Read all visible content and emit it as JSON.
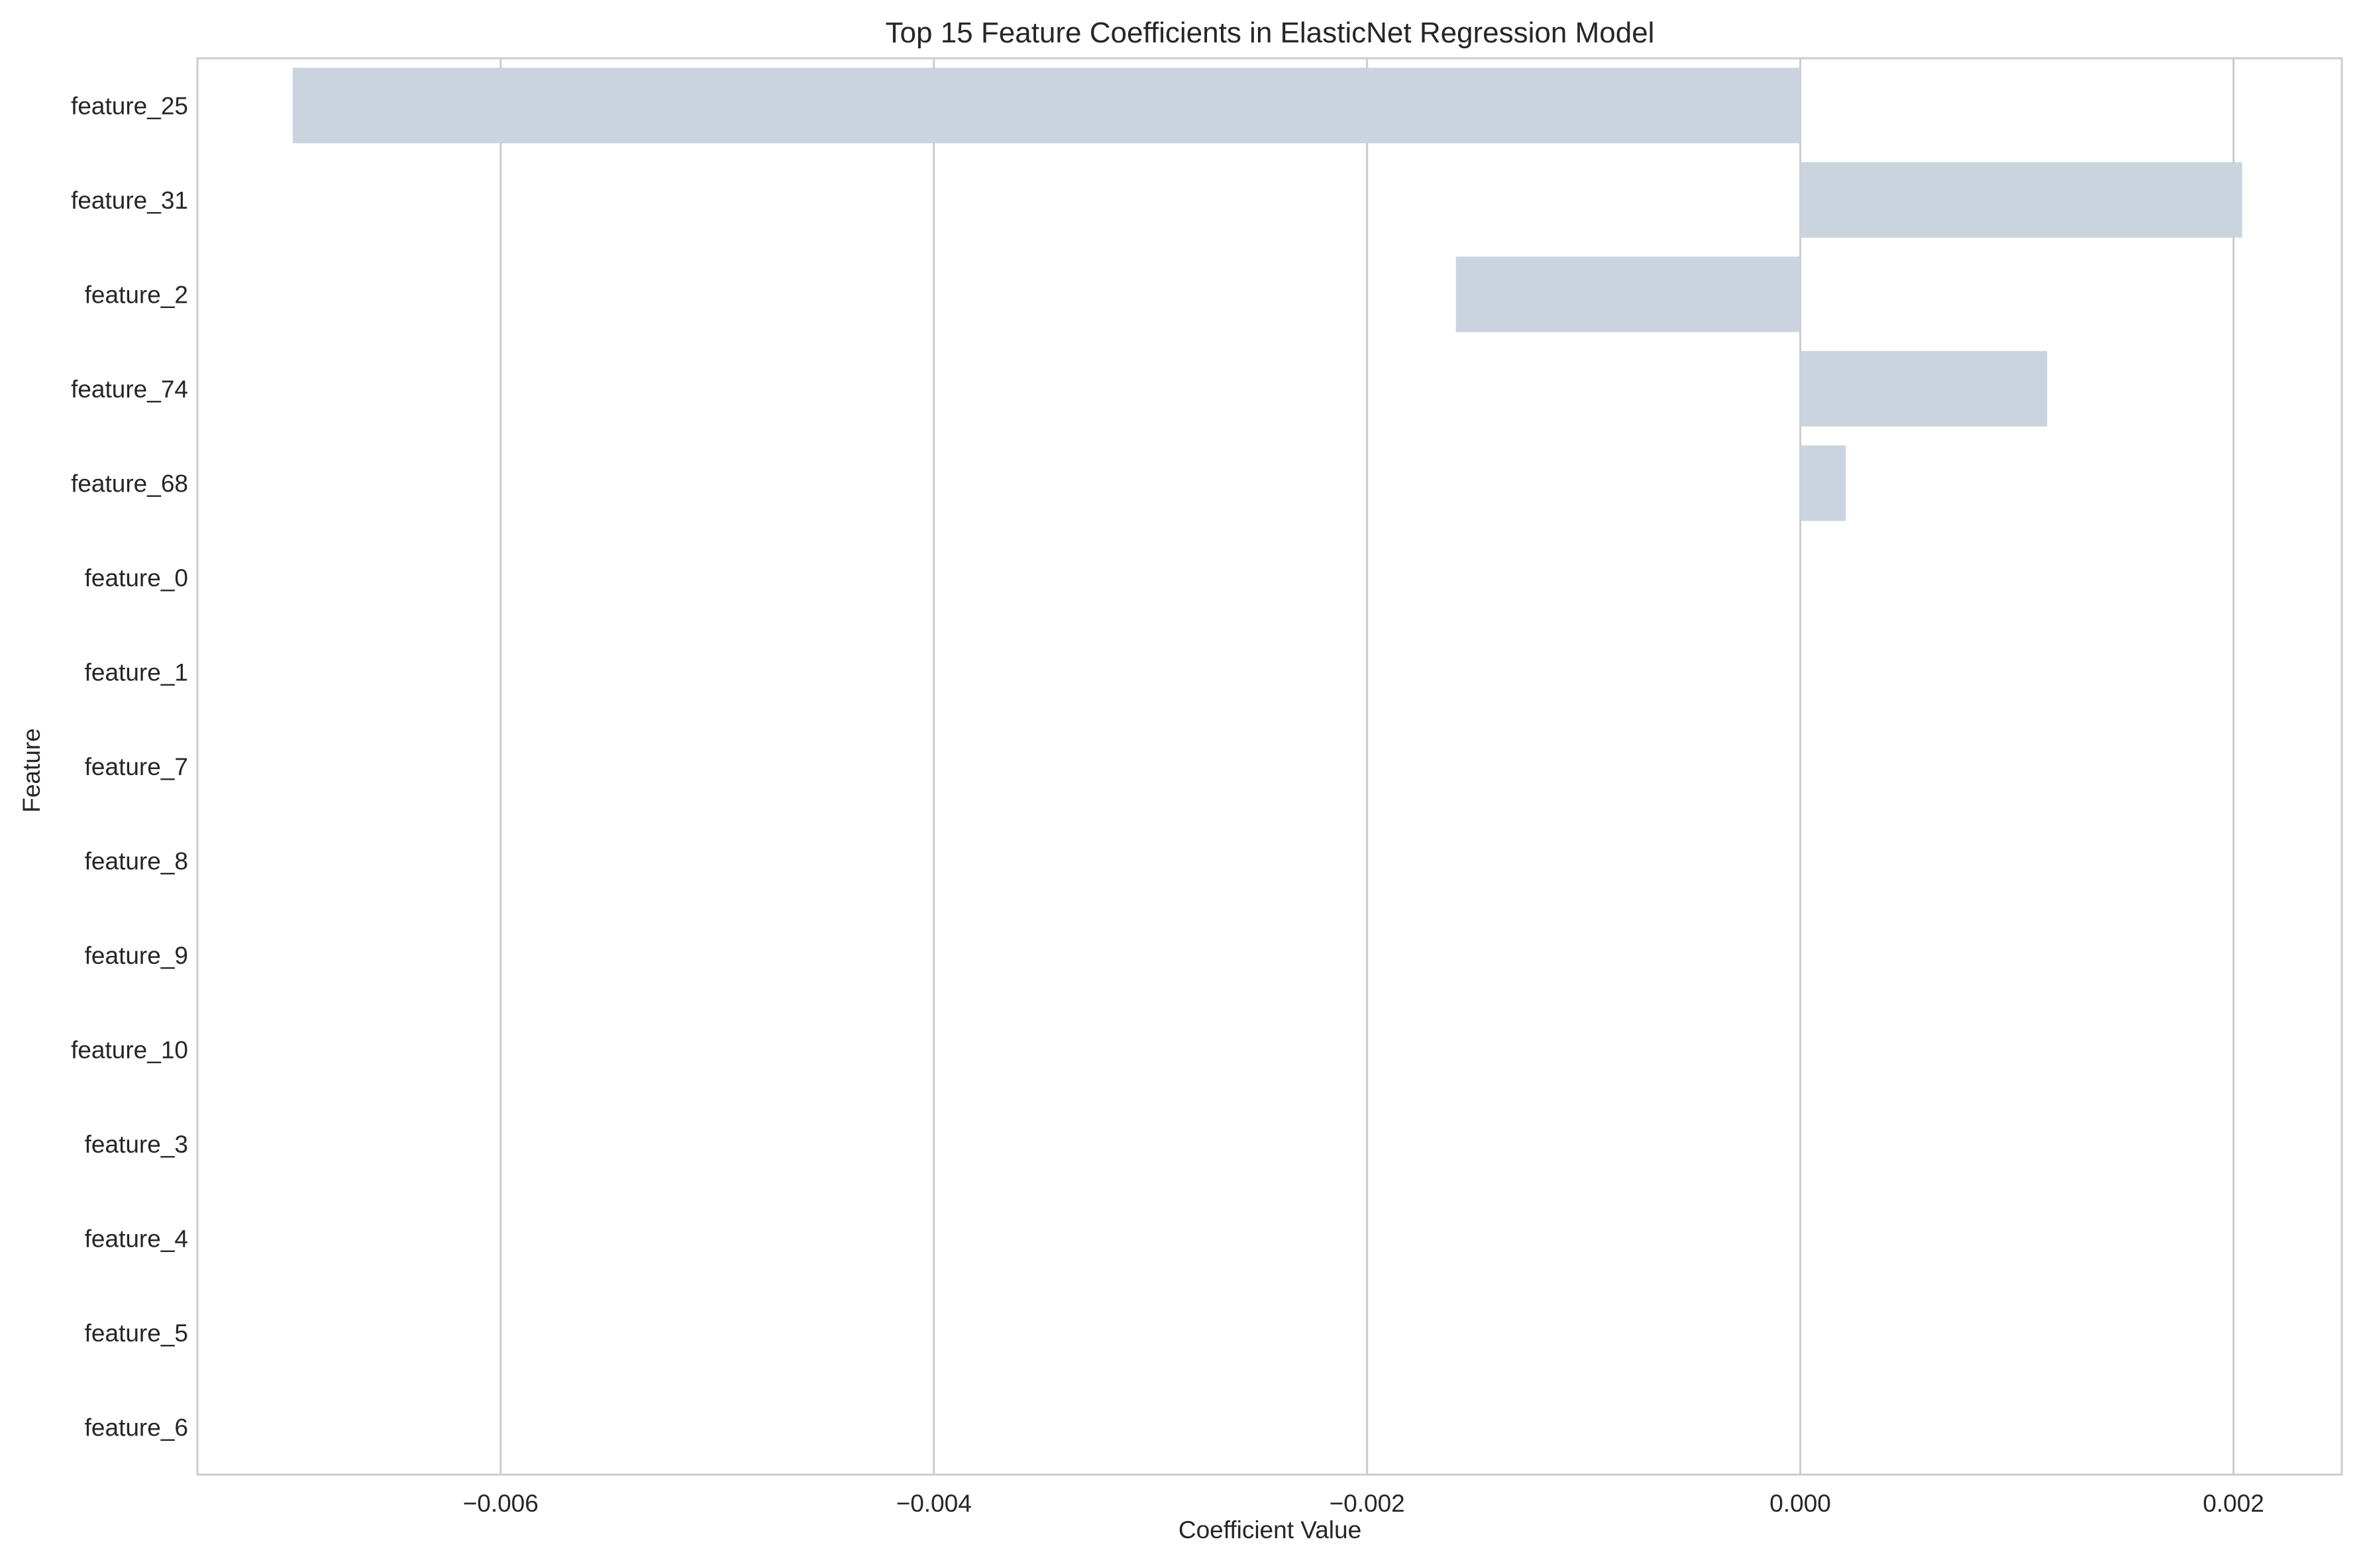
{
  "chart_data": {
    "type": "bar",
    "orientation": "horizontal",
    "title": "Top 15 Feature Coefficients in ElasticNet Regression Model",
    "xlabel": "Coefficient Value",
    "ylabel": "Feature",
    "xlim": [
      -0.0074,
      0.0025
    ],
    "xticks": [
      -0.006,
      -0.004,
      -0.002,
      0.0,
      0.002
    ],
    "xtick_labels": [
      "−0.006",
      "−0.004",
      "−0.002",
      "0.000",
      "0.002"
    ],
    "grid": "vertical",
    "bar_color": "#c9d4df",
    "categories": [
      "feature_25",
      "feature_31",
      "feature_2",
      "feature_74",
      "feature_68",
      "feature_0",
      "feature_1",
      "feature_7",
      "feature_8",
      "feature_9",
      "feature_10",
      "feature_3",
      "feature_4",
      "feature_5",
      "feature_6"
    ],
    "values": [
      -0.00696,
      0.00204,
      -0.00159,
      0.00114,
      0.00021,
      0.0,
      0.0,
      0.0,
      0.0,
      0.0,
      0.0,
      0.0,
      0.0,
      0.0,
      0.0
    ]
  }
}
